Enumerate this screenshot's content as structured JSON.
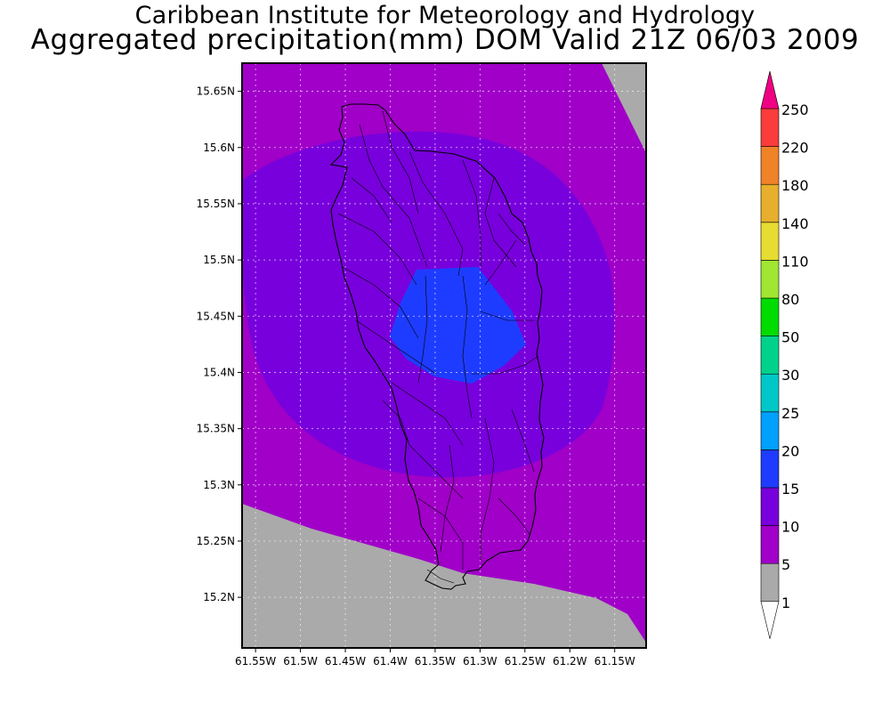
{
  "title": {
    "line1": "Caribbean Institute for Meteorology and Hydrology",
    "line2": "Aggregated precipitation(mm) DOM Valid 21Z 06/03 2009"
  },
  "map": {
    "variable": "precipitation (mm)",
    "region": "Dominica",
    "lon_range": [
      -61.565,
      -61.115
    ],
    "lat_range": [
      15.155,
      15.675
    ],
    "x_ticks": [
      "61.55W",
      "61.5W",
      "61.45W",
      "61.4W",
      "61.35W",
      "61.3W",
      "61.25W",
      "61.2W",
      "61.15W"
    ],
    "y_ticks": [
      "15.65N",
      "15.6N",
      "15.55N",
      "15.5N",
      "15.45N",
      "15.4N",
      "15.35N",
      "15.3N",
      "15.25N",
      "15.2N"
    ],
    "grid": true,
    "max_precip_area": "central Dominica, 15-20 mm"
  },
  "colorbar": {
    "levels": [
      "1",
      "5",
      "10",
      "15",
      "20",
      "25",
      "30",
      "50",
      "80",
      "110",
      "140",
      "180",
      "220",
      "250"
    ],
    "colors": [
      "#aaaaaa",
      "#a000c8",
      "#7800dc",
      "#1e3cff",
      "#00a0ff",
      "#00c8c8",
      "#00d28c",
      "#00dc00",
      "#a0e632",
      "#e6dc32",
      "#e6af2d",
      "#f08228",
      "#fa3c3c",
      "#f00082"
    ],
    "under_color": "#ffffff",
    "over_color": "#f00082"
  },
  "colors": {
    "gray": "#aaaaaa",
    "purple": "#a000c8",
    "violet": "#7800dc",
    "blue": "#1e3cff"
  }
}
